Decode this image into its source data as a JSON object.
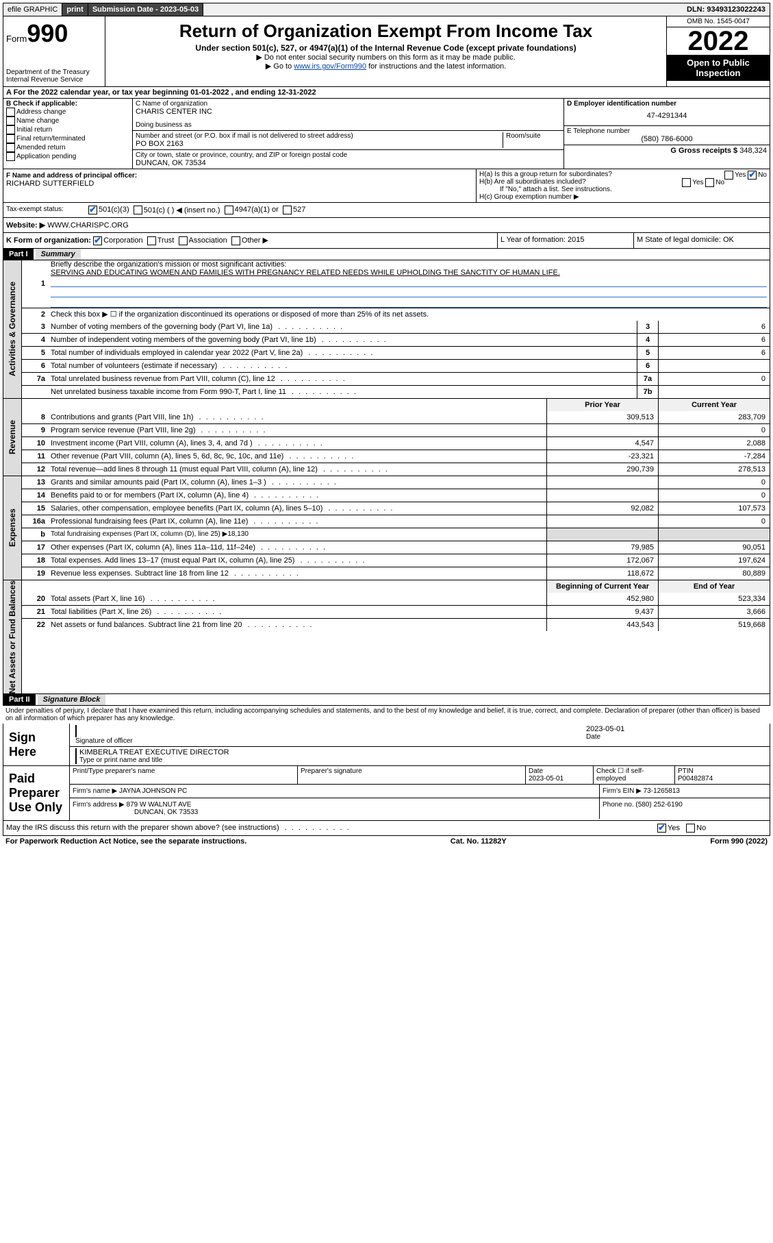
{
  "topbar": {
    "efile": "efile GRAPHIC",
    "print": "print",
    "subdate_label": "Submission Date - 2023-05-03",
    "dln": "DLN: 93493123022243"
  },
  "header": {
    "form_label": "Form",
    "form_num": "990",
    "dept": "Department of the Treasury",
    "irs": "Internal Revenue Service",
    "title": "Return of Organization Exempt From Income Tax",
    "sub": "Under section 501(c), 527, or 4947(a)(1) of the Internal Revenue Code (except private foundations)",
    "note1": "▶ Do not enter social security numbers on this form as it may be made public.",
    "note2_pre": "▶ Go to ",
    "note2_link": "www.irs.gov/Form990",
    "note2_post": " for instructions and the latest information.",
    "omb": "OMB No. 1545-0047",
    "year": "2022",
    "open": "Open to Public Inspection"
  },
  "A": {
    "line": "A For the 2022 calendar year, or tax year beginning 01-01-2022    , and ending 12-31-2022"
  },
  "B": {
    "label": "B Check if applicable:",
    "opts": [
      "Address change",
      "Name change",
      "Initial return",
      "Final return/terminated",
      "Amended return",
      "Application pending"
    ]
  },
  "C": {
    "name_label": "C Name of organization",
    "name": "CHARIS CENTER INC",
    "dba_label": "Doing business as",
    "addr_label": "Number and street (or P.O. box if mail is not delivered to street address)",
    "room": "Room/suite",
    "addr": "PO BOX 2163",
    "city_label": "City or town, state or province, country, and ZIP or foreign postal code",
    "city": "DUNCAN, OK  73534"
  },
  "D": {
    "label": "D Employer identification number",
    "val": "47-4291344"
  },
  "E": {
    "label": "E Telephone number",
    "val": "(580) 786-6000"
  },
  "G": {
    "label": "G Gross receipts $",
    "val": "348,324"
  },
  "F": {
    "label": "F Name and address of principal officer:",
    "val": "RICHARD SUTTERFIELD"
  },
  "H": {
    "a": "H(a)  Is this a group return for subordinates?",
    "b": "H(b)  Are all subordinates included?",
    "b_note": "If \"No,\" attach a list. See instructions.",
    "c": "H(c)  Group exemption number ▶",
    "yes": "Yes",
    "no": "No"
  },
  "I": {
    "label": "Tax-exempt status:",
    "o1": "501(c)(3)",
    "o2": "501(c) (   ) ◀ (insert no.)",
    "o3": "4947(a)(1) or",
    "o4": "527"
  },
  "J": {
    "label": "Website: ▶",
    "val": "WWW.CHARISPC.ORG"
  },
  "K": {
    "label": "K Form of organization:",
    "o1": "Corporation",
    "o2": "Trust",
    "o3": "Association",
    "o4": "Other ▶"
  },
  "L": {
    "label": "L Year of formation: 2015"
  },
  "M": {
    "label": "M State of legal domicile: OK"
  },
  "part1": {
    "hdr": "Part I",
    "title": "Summary",
    "l1": "Briefly describe the organization's mission or most significant activities:",
    "l1v": "SERVING AND EDUCATING WOMEN AND FAMILIES WITH PREGNANCY RELATED NEEDS WHILE UPHOLDING THE SANCTITY OF HUMAN LIFE.",
    "l2": "Check this box ▶ ☐  if the organization discontinued its operations or disposed of more than 25% of its net assets.",
    "prior": "Prior Year",
    "current": "Current Year",
    "begin": "Beginning of Current Year",
    "end": "End of Year"
  },
  "gov_lines": [
    {
      "n": "3",
      "d": "Number of voting members of the governing body (Part VI, line 1a)",
      "box": "3",
      "v": "6"
    },
    {
      "n": "4",
      "d": "Number of independent voting members of the governing body (Part VI, line 1b)",
      "box": "4",
      "v": "6"
    },
    {
      "n": "5",
      "d": "Total number of individuals employed in calendar year 2022 (Part V, line 2a)",
      "box": "5",
      "v": "6"
    },
    {
      "n": "6",
      "d": "Total number of volunteers (estimate if necessary)",
      "box": "6",
      "v": ""
    },
    {
      "n": "7a",
      "d": "Total unrelated business revenue from Part VIII, column (C), line 12",
      "box": "7a",
      "v": "0"
    },
    {
      "n": "",
      "d": "Net unrelated business taxable income from Form 990-T, Part I, line 11",
      "box": "7b",
      "v": ""
    }
  ],
  "rev_lines": [
    {
      "n": "8",
      "d": "Contributions and grants (Part VIII, line 1h)",
      "p": "309,513",
      "c": "283,709"
    },
    {
      "n": "9",
      "d": "Program service revenue (Part VIII, line 2g)",
      "p": "",
      "c": "0"
    },
    {
      "n": "10",
      "d": "Investment income (Part VIII, column (A), lines 3, 4, and 7d )",
      "p": "4,547",
      "c": "2,088"
    },
    {
      "n": "11",
      "d": "Other revenue (Part VIII, column (A), lines 5, 6d, 8c, 9c, 10c, and 11e)",
      "p": "-23,321",
      "c": "-7,284"
    },
    {
      "n": "12",
      "d": "Total revenue—add lines 8 through 11 (must equal Part VIII, column (A), line 12)",
      "p": "290,739",
      "c": "278,513"
    }
  ],
  "exp_lines": [
    {
      "n": "13",
      "d": "Grants and similar amounts paid (Part IX, column (A), lines 1–3 )",
      "p": "",
      "c": "0"
    },
    {
      "n": "14",
      "d": "Benefits paid to or for members (Part IX, column (A), line 4)",
      "p": "",
      "c": "0"
    },
    {
      "n": "15",
      "d": "Salaries, other compensation, employee benefits (Part IX, column (A), lines 5–10)",
      "p": "92,082",
      "c": "107,573"
    },
    {
      "n": "16a",
      "d": "Professional fundraising fees (Part IX, column (A), line 11e)",
      "p": "",
      "c": "0"
    },
    {
      "n": "b",
      "d": "Total fundraising expenses (Part IX, column (D), line 25) ▶18,130",
      "p": null,
      "c": null
    },
    {
      "n": "17",
      "d": "Other expenses (Part IX, column (A), lines 11a–11d, 11f–24e)",
      "p": "79,985",
      "c": "90,051"
    },
    {
      "n": "18",
      "d": "Total expenses. Add lines 13–17 (must equal Part IX, column (A), line 25)",
      "p": "172,067",
      "c": "197,624"
    },
    {
      "n": "19",
      "d": "Revenue less expenses. Subtract line 18 from line 12",
      "p": "118,672",
      "c": "80,889"
    }
  ],
  "na_lines": [
    {
      "n": "20",
      "d": "Total assets (Part X, line 16)",
      "p": "452,980",
      "c": "523,334"
    },
    {
      "n": "21",
      "d": "Total liabilities (Part X, line 26)",
      "p": "9,437",
      "c": "3,666"
    },
    {
      "n": "22",
      "d": "Net assets or fund balances. Subtract line 21 from line 20",
      "p": "443,543",
      "c": "519,668"
    }
  ],
  "part2": {
    "hdr": "Part II",
    "title": "Signature Block",
    "decl": "Under penalties of perjury, I declare that I have examined this return, including accompanying schedules and statements, and to the best of my knowledge and belief, it is true, correct, and complete. Declaration of preparer (other than officer) is based on all information of which preparer has any knowledge."
  },
  "sign": {
    "here": "Sign Here",
    "sig_label": "Signature of officer",
    "date": "2023-05-01",
    "date_label": "Date",
    "name": "KIMBERLA TREAT  EXECUTIVE DIRECTOR",
    "name_label": "Type or print name and title"
  },
  "paid": {
    "title": "Paid Preparer Use Only",
    "prep_name_label": "Print/Type preparer's name",
    "prep_sig_label": "Preparer's signature",
    "date_label": "Date",
    "date": "2023-05-01",
    "check_label": "Check ☐ if self-employed",
    "ptin_label": "PTIN",
    "ptin": "P00482874",
    "firm_name_label": "Firm's name   ▶",
    "firm_name": "JAYNA JOHNSON PC",
    "firm_ein_label": "Firm's EIN ▶",
    "firm_ein": "73-1265813",
    "firm_addr_label": "Firm's address ▶",
    "firm_addr1": "879 W WALNUT AVE",
    "firm_addr2": "DUNCAN, OK  73533",
    "phone_label": "Phone no.",
    "phone": "(580) 252-6190"
  },
  "footer": {
    "discuss": "May the IRS discuss this return with the preparer shown above? (see instructions)",
    "yes": "Yes",
    "no": "No",
    "pra": "For Paperwork Reduction Act Notice, see the separate instructions.",
    "cat": "Cat. No. 11282Y",
    "form": "Form 990 (2022)"
  },
  "vtabs": {
    "gov": "Activities & Governance",
    "rev": "Revenue",
    "exp": "Expenses",
    "na": "Net Assets or Fund Balances"
  }
}
